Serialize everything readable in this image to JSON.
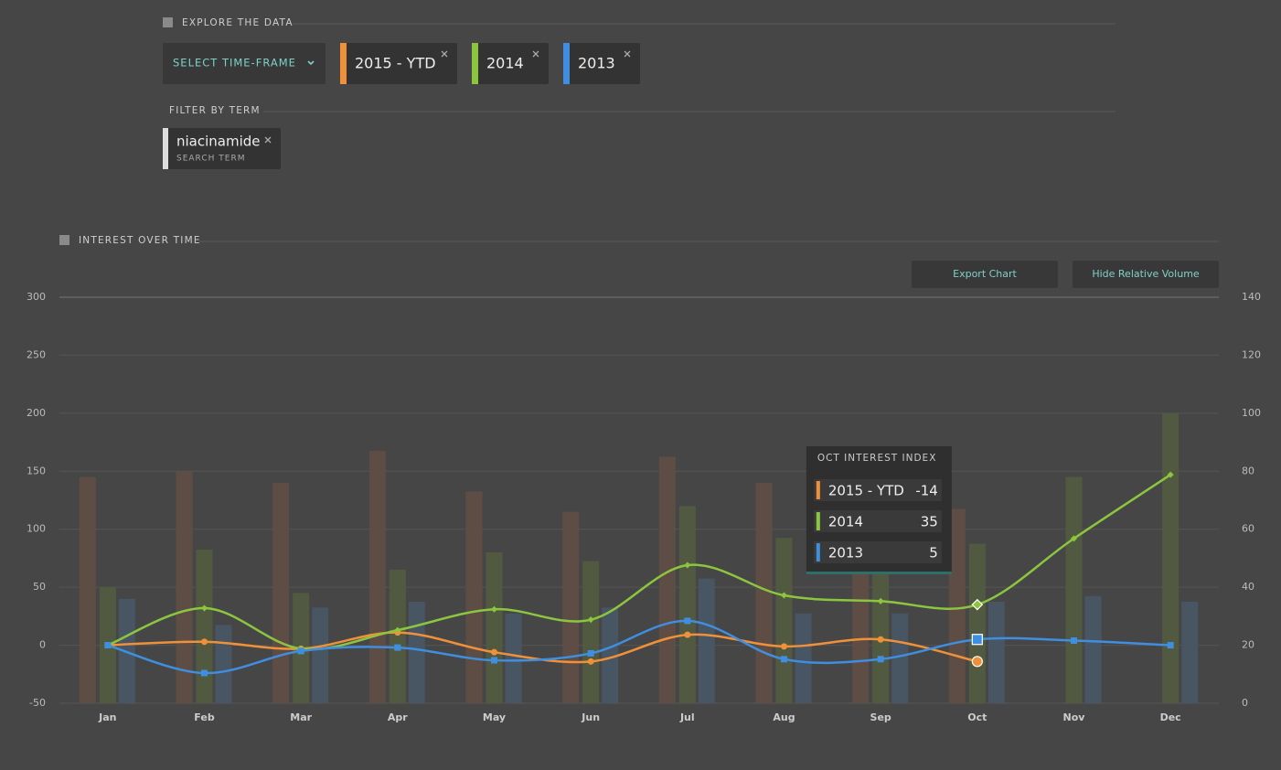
{
  "header": {
    "title": "EXPLORE THE DATA",
    "time_frame_button": "SELECT TIME-FRAME",
    "filter_title": "FILTER BY TERM",
    "term": "niacinamide",
    "term_label": "SEARCH TERM"
  },
  "chart_data": {
    "type": "line",
    "title": "INTEREST OVER TIME",
    "buttons": [
      "Export Chart",
      "Hide Relative Volume"
    ],
    "categories": [
      "Jan",
      "Feb",
      "Mar",
      "Apr",
      "May",
      "Jun",
      "Jul",
      "Aug",
      "Sep",
      "Oct",
      "Nov",
      "Dec"
    ],
    "series": [
      {
        "name": "2015 - YTD",
        "color": "#f0913a",
        "marker": "circle",
        "values": [
          0,
          3,
          -3,
          11,
          -6,
          -14,
          9,
          -1,
          5,
          -14,
          null,
          null
        ]
      },
      {
        "name": "2014",
        "color": "#8cc63f",
        "marker": "diamond",
        "values": [
          0,
          32,
          -3,
          13,
          31,
          22,
          69,
          43,
          38,
          35,
          92,
          147
        ]
      },
      {
        "name": "2013",
        "color": "#3f8ee0",
        "marker": "square",
        "values": [
          0,
          -24,
          -5,
          -2,
          -13,
          -7,
          21,
          -12,
          -12,
          5,
          4,
          0
        ]
      }
    ],
    "volume": [
      {
        "type": "bar",
        "axis": "y2",
        "color": "#5e4d44",
        "values": [
          78,
          80,
          76,
          87,
          73,
          66,
          85,
          76,
          66,
          67,
          null,
          null
        ]
      },
      {
        "type": "bar",
        "axis": "y2",
        "color": "#515a40",
        "values": [
          40,
          53,
          38,
          46,
          52,
          49,
          68,
          57,
          47,
          55,
          78,
          100
        ]
      },
      {
        "type": "bar",
        "axis": "y2",
        "color": "#485563",
        "values": [
          36,
          27,
          33,
          35,
          31,
          33,
          43,
          31,
          31,
          35,
          37,
          35
        ]
      }
    ],
    "ylim": [
      -50,
      300
    ],
    "yticks": [
      -50,
      0,
      50,
      100,
      150,
      200,
      250,
      300
    ],
    "y2lim": [
      0,
      140
    ],
    "y2ticks": [
      0,
      20,
      40,
      60,
      80,
      100,
      120,
      140
    ],
    "grid": true,
    "tooltip": {
      "title": "OCT INTEREST INDEX",
      "values": [
        -14,
        35,
        5
      ]
    }
  }
}
